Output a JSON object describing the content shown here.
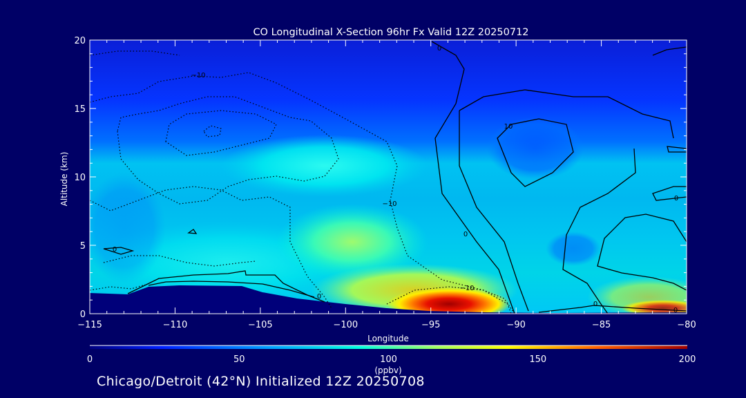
{
  "chart_data": {
    "type": "heatmap",
    "title": "CO Longitudinal X-Section 96hr  Fx Valid 12Z 20250712",
    "xlabel": "Longitude",
    "ylabel": "Altitude (km)",
    "xlim": [
      -115,
      -80
    ],
    "ylim": [
      0,
      20
    ],
    "x_ticks": [
      -115,
      -110,
      -105,
      -100,
      -95,
      -90,
      -85,
      -80
    ],
    "x_tick_labels": [
      "−115",
      "−110",
      "−105",
      "−100",
      "−95",
      "−90",
      "−85",
      "−80"
    ],
    "y_ticks": [
      0,
      5,
      10,
      15,
      20
    ],
    "y_tick_labels": [
      "0",
      "5",
      "10",
      "15",
      "20"
    ],
    "colorbar": {
      "range": [
        0,
        200
      ],
      "ticks": [
        0,
        50,
        100,
        150,
        200
      ],
      "tick_labels": [
        "0",
        "50",
        "100",
        "150",
        "200"
      ],
      "units": "(ppbv)"
    },
    "field_bands": [
      {
        "alt_km": [
          17,
          20
        ],
        "value": 30
      },
      {
        "alt_km": [
          13,
          17
        ],
        "value": 45
      },
      {
        "alt_km": [
          10,
          13
        ],
        "value": 75
      },
      {
        "alt_km": [
          6,
          10
        ],
        "value": 65
      },
      {
        "alt_km": [
          2,
          6
        ],
        "value": 80
      }
    ],
    "hotspots": [
      {
        "lon": -93.5,
        "alt_km": 0.8,
        "value": 190
      },
      {
        "lon": -96,
        "alt_km": 1.1,
        "value": 130
      },
      {
        "lon": -83,
        "alt_km": 0.4,
        "value": 150
      },
      {
        "lon": -99,
        "alt_km": 5.3,
        "value": 105
      },
      {
        "lon": -100,
        "alt_km": 11,
        "value": 90
      }
    ],
    "terrain_km": [
      [
        -115,
        1.6
      ],
      [
        -111,
        1.9
      ],
      [
        -107,
        2.0
      ],
      [
        -104,
        1.5
      ],
      [
        -100,
        0.9
      ],
      [
        -95,
        0.45
      ],
      [
        -90,
        0.2
      ],
      [
        -85,
        0.15
      ],
      [
        -80,
        0.1
      ]
    ],
    "contour_labels": [
      "0",
      "0",
      "0",
      "0",
      "0",
      "0",
      "−10",
      "−10",
      "−10",
      "10",
      "0"
    ]
  },
  "footer": "Chicago/Detroit (42°N) Initialized 12Z 20250708",
  "colors": {
    "background": "#000066",
    "text": "#ffffff",
    "terrain": "#00007a",
    "contour": "#000000"
  }
}
